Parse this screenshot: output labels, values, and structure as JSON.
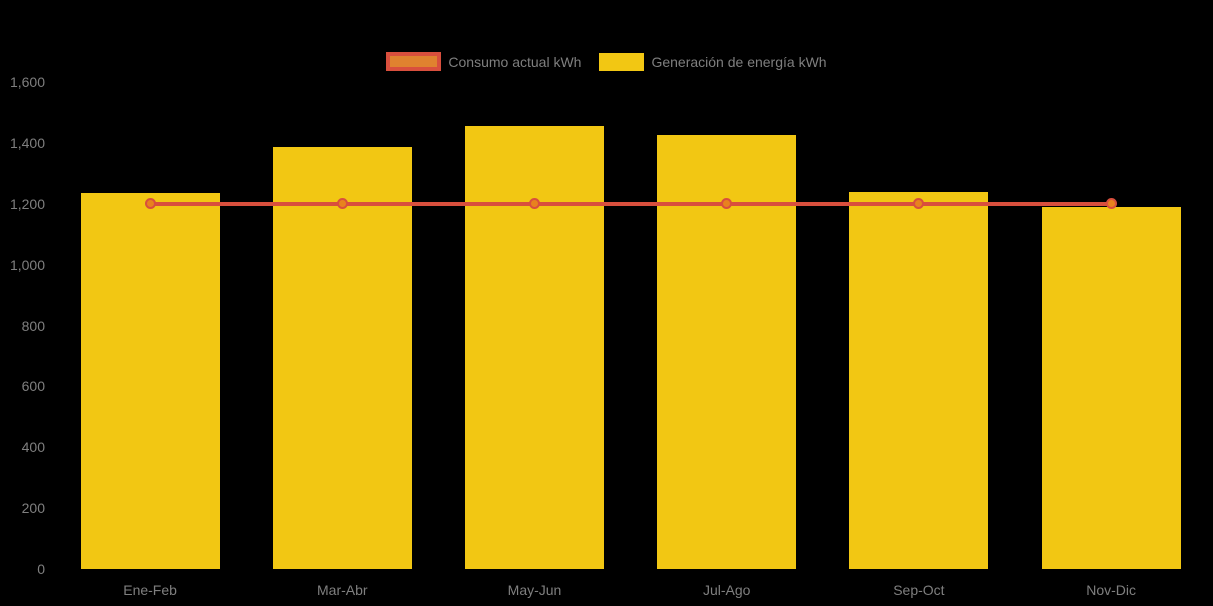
{
  "legend": {
    "items": [
      {
        "label": "Consumo actual kWh",
        "swatch": "line-swatch"
      },
      {
        "label": "Generación de energía kWh",
        "swatch": "bar-swatch"
      }
    ]
  },
  "chart_data": {
    "type": "bar+line",
    "categories": [
      "Ene-Feb",
      "Mar-Abr",
      "May-Jun",
      "Jul-Ago",
      "Sep-Oct",
      "Nov-Dic"
    ],
    "series": [
      {
        "name": "Consumo actual kWh",
        "type": "line",
        "values": [
          1200,
          1200,
          1200,
          1200,
          1200,
          1200
        ],
        "color": "#D94F3D",
        "marker_fill": "#E8821E"
      },
      {
        "name": "Generación de energía kWh",
        "type": "bar",
        "values": [
          1235,
          1385,
          1455,
          1425,
          1240,
          1190
        ],
        "color": "#F2C713"
      }
    ],
    "ylabel": "",
    "xlabel": "",
    "ylim": [
      0,
      1600
    ],
    "y_tick_step": 200,
    "y_tick_labels": [
      "0",
      "200",
      "400",
      "600",
      "800",
      "1,000",
      "1,200",
      "1,400",
      "1,600"
    ],
    "grid": false,
    "legend_position": "top-center",
    "colors": {
      "background": "#000000",
      "bar": "#F2C713",
      "line": "#D94F3D",
      "marker_fill": "#E8821E",
      "legend_line_fill": "#E0822F",
      "text": "#7F7F7F"
    }
  }
}
